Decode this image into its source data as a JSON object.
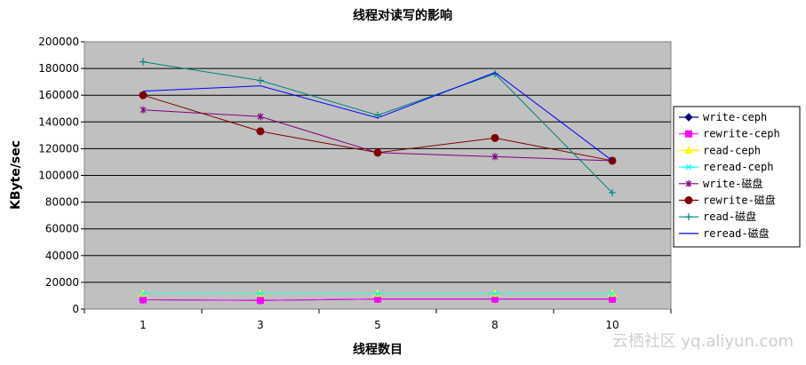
{
  "chart_data": {
    "type": "line",
    "title": "线程对读写的影响",
    "xlabel": "线程数目",
    "ylabel": "KByte/sec",
    "categories": [
      "1",
      "3",
      "5",
      "8",
      "10"
    ],
    "ylim": [
      0,
      200000
    ],
    "yticks": [
      0,
      20000,
      40000,
      60000,
      80000,
      100000,
      120000,
      140000,
      160000,
      180000,
      200000
    ],
    "grid": true,
    "legend_position": "right",
    "series": [
      {
        "name": "write-ceph",
        "color": "#000080",
        "marker": "diamond",
        "values": [
          7000,
          6500,
          7500,
          7500,
          7500
        ]
      },
      {
        "name": "rewrite-ceph",
        "color": "#FF00FF",
        "marker": "square",
        "values": [
          7000,
          6500,
          7500,
          7500,
          7500
        ]
      },
      {
        "name": "read-ceph",
        "color": "#FFFF00",
        "marker": "triangle",
        "values": [
          11500,
          11500,
          11500,
          11500,
          11500
        ]
      },
      {
        "name": "reread-ceph",
        "color": "#00FFFF",
        "marker": "x",
        "values": [
          11500,
          11500,
          11500,
          11500,
          11500
        ]
      },
      {
        "name": "write-磁盘",
        "color": "#800080",
        "marker": "star",
        "values": [
          149000,
          144000,
          117000,
          114000,
          111000
        ]
      },
      {
        "name": "rewrite-磁盘",
        "color": "#800000",
        "marker": "circle",
        "values": [
          160000,
          133000,
          117000,
          128000,
          111000
        ]
      },
      {
        "name": "read-磁盘",
        "color": "#008080",
        "marker": "plus",
        "values": [
          185000,
          171000,
          145000,
          176000,
          87000
        ]
      },
      {
        "name": "reread-磁盘",
        "color": "#0000FF",
        "marker": "none",
        "values": [
          163000,
          167000,
          143000,
          177000,
          111000
        ]
      }
    ]
  },
  "watermark": "云栖社区 yq.aliyun.com"
}
